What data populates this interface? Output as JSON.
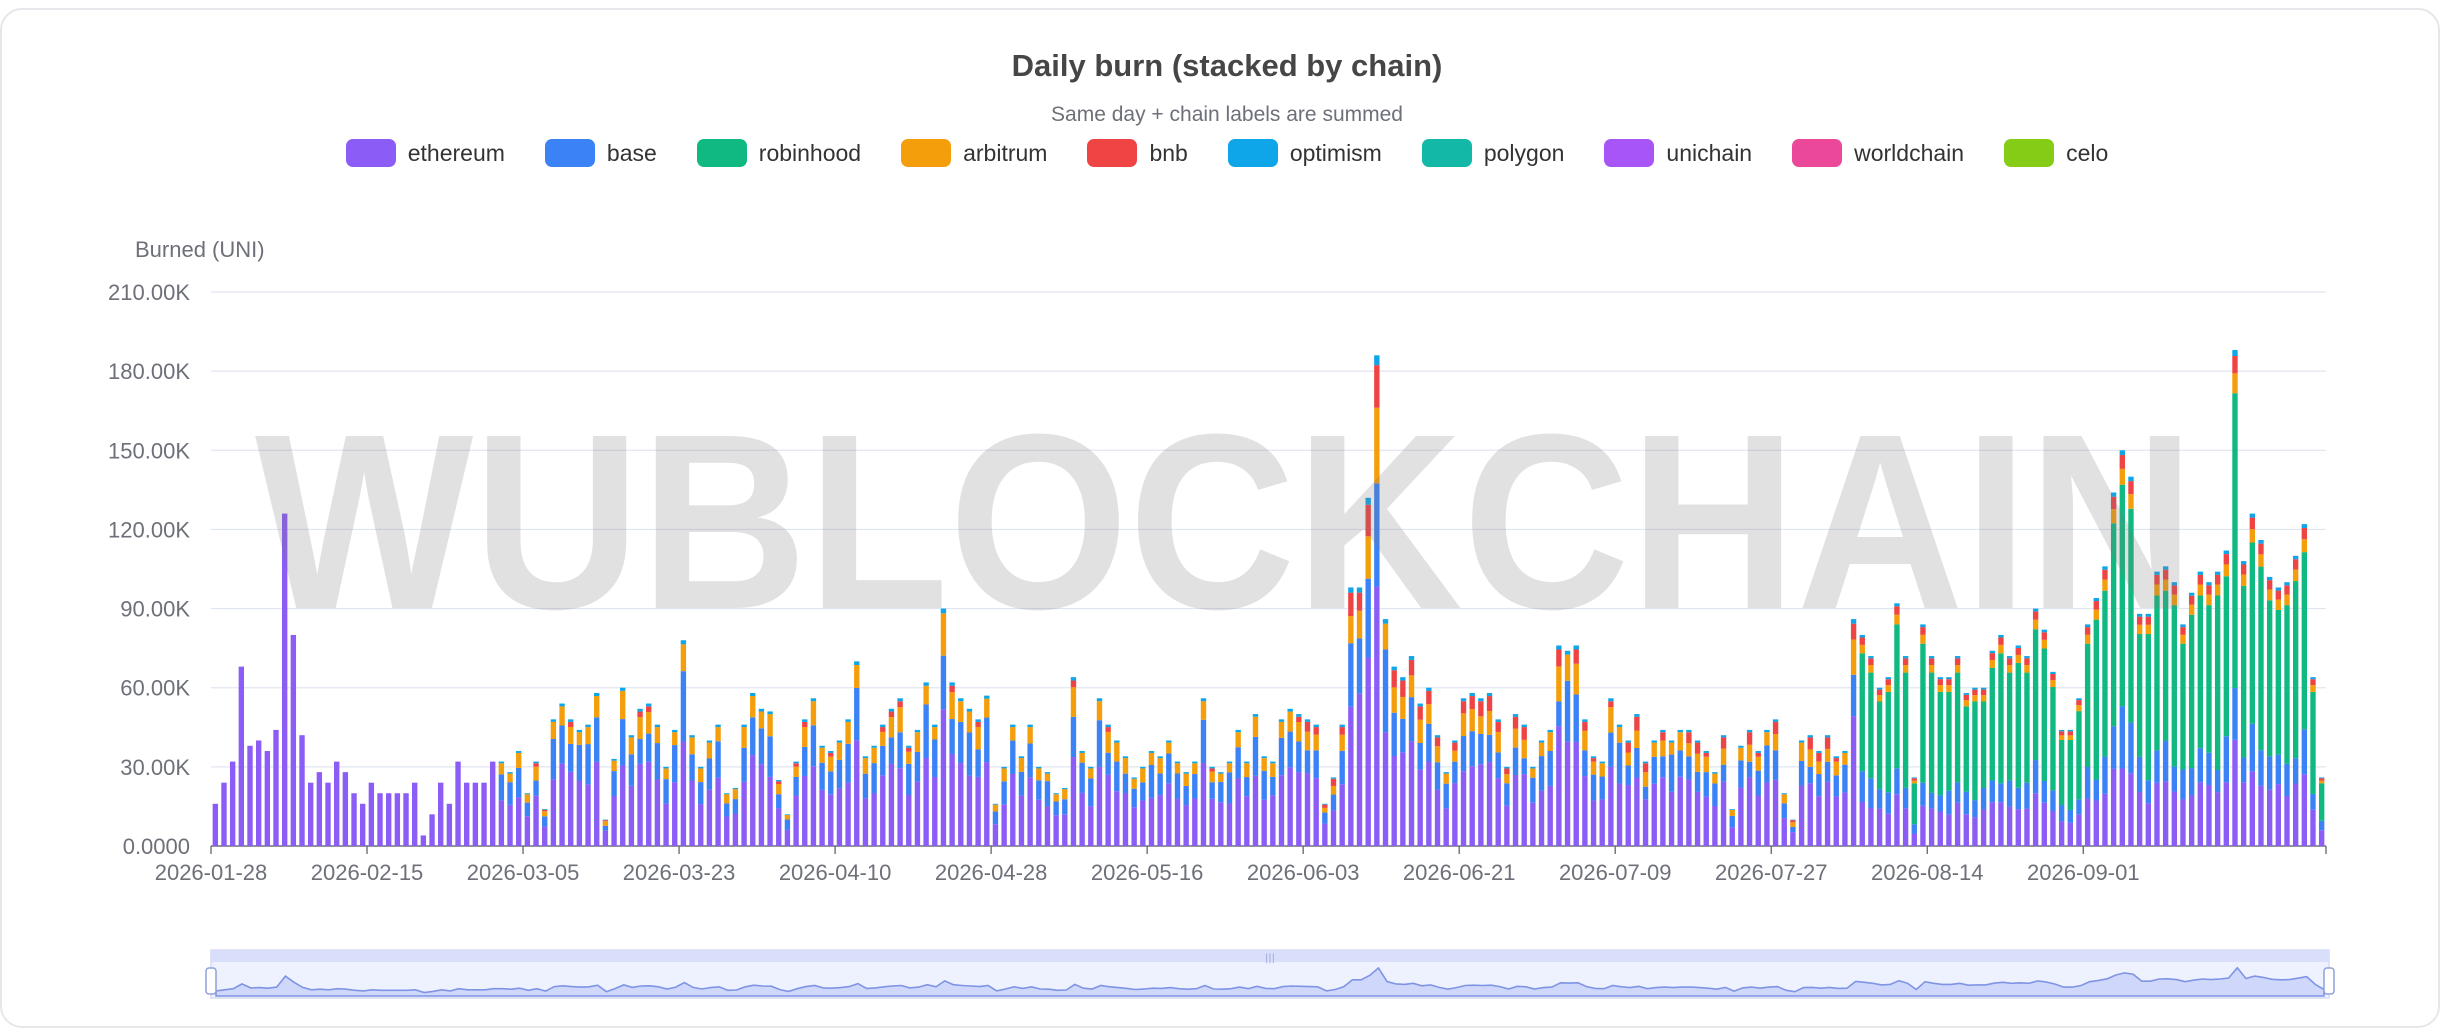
{
  "chart_data": {
    "type": "bar",
    "stacked": true,
    "title": "Daily burn (stacked by chain)",
    "subtitle": "Same day + chain labels are summed",
    "ylabel": "Burned (UNI)",
    "ylim": [
      0,
      210000
    ],
    "yticks": [
      0,
      30000,
      60000,
      90000,
      120000,
      150000,
      180000,
      210000
    ],
    "ytick_labels": [
      "0.0000",
      "30.00K",
      "60.00K",
      "90.00K",
      "120.00K",
      "150.00K",
      "180.00K",
      "210.00K"
    ],
    "x_start": "2026-01-28",
    "x_end": "2026-09-14",
    "xtick_labels": [
      "2026-01-28",
      "2026-02-15",
      "2026-03-05",
      "2026-03-23",
      "2026-04-10",
      "2026-04-28",
      "2026-05-16",
      "2026-06-03",
      "2026-06-21",
      "2026-07-09",
      "2026-07-27",
      "2026-08-14",
      "2026-09-01"
    ],
    "grid": true,
    "legend_position": "top-center",
    "series": [
      {
        "name": "ethereum",
        "color": "#8b5cf6"
      },
      {
        "name": "base",
        "color": "#3b82f6"
      },
      {
        "name": "robinhood",
        "color": "#10b981"
      },
      {
        "name": "arbitrum",
        "color": "#f59e0b"
      },
      {
        "name": "bnb",
        "color": "#ef4444"
      },
      {
        "name": "optimism",
        "color": "#0ea5e9"
      },
      {
        "name": "polygon",
        "color": "#14b8a6"
      },
      {
        "name": "unichain",
        "color": "#a855f7"
      },
      {
        "name": "worldchain",
        "color": "#ec4899"
      },
      {
        "name": "celo",
        "color": "#84cc16"
      }
    ],
    "totals": [
      16000,
      24000,
      32000,
      68000,
      38000,
      40000,
      36000,
      44000,
      126000,
      80000,
      42000,
      24000,
      28000,
      24000,
      32000,
      28000,
      20000,
      16000,
      24000,
      20000,
      20000,
      20000,
      20000,
      24000,
      4000,
      12000,
      24000,
      16000,
      32000,
      24000,
      24000,
      24000,
      32000,
      32000,
      28000,
      36000,
      20000,
      32000,
      14000,
      48000,
      54000,
      48000,
      44000,
      46000,
      58000,
      10000,
      33000,
      60000,
      42000,
      52000,
      54000,
      46000,
      30000,
      44000,
      78000,
      42000,
      30000,
      40000,
      46000,
      20000,
      22000,
      46000,
      58000,
      52000,
      51000,
      25000,
      12000,
      32000,
      48000,
      56000,
      38000,
      36000,
      40000,
      48000,
      70000,
      34000,
      38000,
      46000,
      52000,
      56000,
      38000,
      44000,
      62000,
      46000,
      90000,
      62000,
      56000,
      52000,
      48000,
      57000,
      16000,
      30000,
      46000,
      34000,
      46000,
      30000,
      28000,
      20000,
      22000,
      64000,
      36000,
      30000,
      56000,
      46000,
      40000,
      34000,
      26000,
      30000,
      36000,
      34000,
      40000,
      32000,
      28000,
      32000,
      56000,
      30000,
      28000,
      32000,
      44000,
      32000,
      50000,
      34000,
      32000,
      48000,
      52000,
      50000,
      48000,
      46000,
      16000,
      26000,
      46000,
      98000,
      98000,
      132000,
      186000,
      86000,
      68000,
      64000,
      72000,
      54000,
      60000,
      42000,
      28000,
      40000,
      56000,
      58000,
      56000,
      58000,
      48000,
      30000,
      50000,
      46000,
      30000,
      40000,
      44000,
      76000,
      74000,
      76000,
      48000,
      34000,
      32000,
      56000,
      46000,
      40000,
      50000,
      32000,
      40000,
      44000,
      40000,
      44000,
      44000,
      40000,
      36000,
      28000,
      42000,
      14000,
      38000,
      44000,
      36000,
      44000,
      48000,
      20000,
      10000,
      40000,
      42000,
      36000,
      42000,
      34000,
      36000,
      86000,
      80000,
      72000,
      60000,
      64000,
      92000,
      72000,
      26000,
      84000,
      72000,
      64000,
      64000,
      72000,
      58000,
      60000,
      60000,
      74000,
      80000,
      72000,
      76000,
      72000,
      90000,
      82000,
      66000,
      44000,
      44000,
      56000,
      84000,
      94000,
      106000,
      134000,
      150000,
      140000,
      88000,
      88000,
      104000,
      106000,
      100000,
      84000,
      96000,
      104000,
      100000,
      104000,
      112000,
      188000,
      108000,
      126000,
      116000,
      102000,
      98000,
      100000,
      110000,
      122000,
      64000,
      26000
    ]
  }
}
